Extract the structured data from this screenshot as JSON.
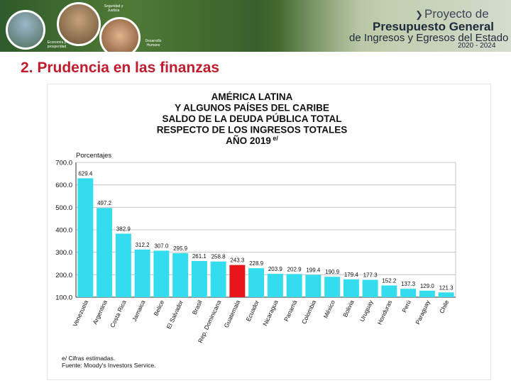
{
  "header": {
    "badge_labels": [
      "Seguridad y Justicia",
      "Economía y prosperidad",
      "Desarrollo Humano"
    ],
    "logo_line1": "Proyecto de",
    "logo_line2": "Presupuesto General",
    "logo_line3": "de Ingresos y Egresos del Estado",
    "logo_years": "2020 - 2024"
  },
  "slide_title": "2. Prudencia en las finanzas",
  "chart_data": {
    "type": "bar",
    "title": [
      "AMÉRICA LATINA",
      "Y ALGUNOS PAÍSES DEL CARIBE",
      "SALDO DE LA DEUDA PÚBLICA TOTAL",
      "RESPECTO DE LOS INGRESOS TOTALES",
      "AÑO 2019"
    ],
    "title_superscript": "e/",
    "ylabel": "Porcentajes",
    "ylim": [
      100,
      700
    ],
    "yticks": [
      "700.0",
      "600.0",
      "500.0",
      "400.0",
      "300.0",
      "200.0",
      "100.0"
    ],
    "grid": "y",
    "categories": [
      "Venezuela",
      "Argentina",
      "Costa Rica",
      "Jamaica",
      "Belice",
      "El Salvador",
      "Brasil",
      "Rep. Dominicana",
      "Guatemala",
      "Ecuador",
      "Nicaragua",
      "Panamá",
      "Colombia",
      "México",
      "Bolivia",
      "Uruguay",
      "Honduras",
      "Perú",
      "Paraguay",
      "Chile"
    ],
    "values": [
      629.4,
      497.2,
      382.9,
      312.2,
      307.0,
      295.9,
      261.1,
      258.8,
      243.3,
      228.9,
      203.9,
      202.9,
      199.4,
      190.9,
      179.4,
      177.3,
      152.2,
      137.3,
      129.0,
      121.3
    ],
    "value_labels": [
      "629.4",
      "497.2",
      "382.9",
      "312.2",
      "307.0",
      "295.9",
      "261.1",
      "258.8",
      "243.3",
      "228.9",
      "203.9",
      "202.9",
      "199.4",
      "190.9",
      "179.4",
      "177.3",
      "152.2",
      "137.3",
      "129.0",
      "121.3"
    ],
    "highlight": "Guatemala",
    "colors": {
      "bar": "#33ddee",
      "highlight": "#e8151a",
      "grid": "#bbbbbb"
    },
    "notes": [
      "e/ Cifras estimadas.",
      "Fuente:  Moody's Investors Service."
    ]
  }
}
